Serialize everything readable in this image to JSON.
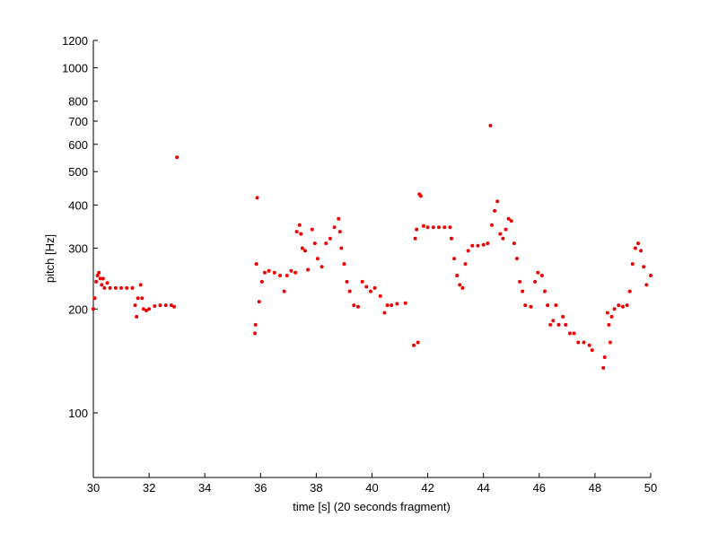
{
  "chart_data": {
    "type": "scatter",
    "xlabel": "time [s] (20 seconds fragment)",
    "ylabel": "pitch [Hz]",
    "xlim": [
      30,
      50
    ],
    "xticks": [
      30,
      32,
      34,
      36,
      38,
      40,
      42,
      44,
      46,
      48,
      50
    ],
    "ylim": [
      65,
      1200
    ],
    "yticks": [
      100,
      200,
      300,
      400,
      500,
      600,
      700,
      800,
      1000,
      1200
    ],
    "ylog": true,
    "series": [
      {
        "color": "#ee0000",
        "x": [
          30.0,
          30.05,
          30.1,
          30.15,
          30.2,
          30.25,
          30.3,
          30.35,
          30.4,
          30.5,
          30.6,
          30.8,
          31.0,
          31.2,
          31.4,
          31.5,
          31.55,
          31.6,
          31.7,
          31.75,
          31.8,
          31.9,
          32.0,
          32.2,
          32.4,
          32.6,
          32.8,
          32.9,
          33.0,
          35.8,
          35.82,
          35.85,
          35.88,
          35.95,
          36.05,
          36.15,
          36.3,
          36.5,
          36.7,
          36.85,
          36.95,
          37.1,
          37.25,
          37.3,
          37.4,
          37.45,
          37.5,
          37.6,
          37.7,
          37.85,
          37.95,
          38.05,
          38.2,
          38.35,
          38.5,
          38.65,
          38.8,
          38.85,
          38.9,
          39.0,
          39.1,
          39.2,
          39.35,
          39.5,
          39.65,
          39.8,
          39.95,
          40.1,
          40.3,
          40.45,
          40.55,
          40.7,
          40.9,
          41.2,
          41.5,
          41.55,
          41.6,
          41.65,
          41.7,
          41.75,
          41.85,
          42.0,
          42.2,
          42.4,
          42.6,
          42.8,
          42.85,
          42.95,
          43.05,
          43.15,
          43.25,
          43.35,
          43.45,
          43.6,
          43.8,
          44.0,
          44.15,
          44.25,
          44.3,
          44.4,
          44.5,
          44.6,
          44.7,
          44.8,
          44.9,
          45.0,
          45.1,
          45.2,
          45.3,
          45.4,
          45.5,
          45.7,
          45.85,
          45.95,
          46.1,
          46.2,
          46.3,
          46.4,
          46.5,
          46.6,
          46.7,
          46.85,
          46.95,
          47.1,
          47.25,
          47.4,
          47.6,
          47.8,
          47.9,
          48.3,
          48.35,
          48.45,
          48.5,
          48.55,
          48.6,
          48.7,
          48.85,
          49.0,
          49.15,
          49.25,
          49.35,
          49.45,
          49.55,
          49.65,
          49.75,
          49.85,
          50.0
        ],
        "values": [
          200,
          215,
          240,
          250,
          255,
          245,
          235,
          245,
          230,
          238,
          230,
          230,
          230,
          230,
          230,
          205,
          190,
          215,
          235,
          215,
          200,
          198,
          200,
          204,
          205,
          205,
          205,
          203,
          550,
          170,
          180,
          270,
          420,
          210,
          240,
          255,
          258,
          255,
          250,
          225,
          250,
          258,
          255,
          335,
          350,
          330,
          300,
          295,
          260,
          340,
          310,
          280,
          265,
          310,
          320,
          345,
          365,
          335,
          300,
          270,
          240,
          225,
          205,
          203,
          240,
          232,
          225,
          230,
          218,
          195,
          205,
          205,
          207,
          208,
          157,
          320,
          340,
          160,
          430,
          425,
          348,
          345,
          345,
          345,
          345,
          345,
          320,
          280,
          250,
          235,
          230,
          270,
          295,
          305,
          305,
          307,
          310,
          680,
          350,
          385,
          410,
          330,
          320,
          340,
          365,
          360,
          310,
          280,
          240,
          225,
          205,
          203,
          240,
          255,
          250,
          225,
          205,
          180,
          185,
          205,
          180,
          190,
          180,
          170,
          170,
          160,
          160,
          157,
          152,
          135,
          145,
          195,
          180,
          160,
          190,
          200,
          205,
          203,
          205,
          225,
          270,
          300,
          310,
          295,
          265,
          235,
          250
        ]
      }
    ]
  }
}
